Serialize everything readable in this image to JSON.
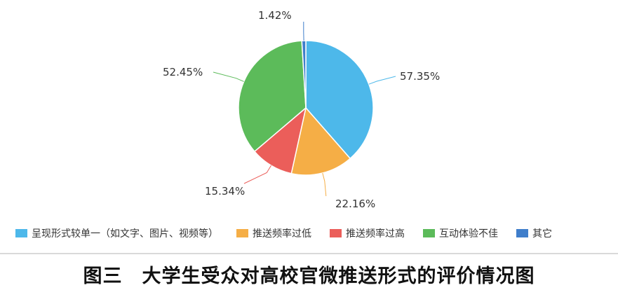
{
  "chart_data": {
    "type": "pie",
    "categories": [
      "呈现形式较单一（如文字、图片、视频等）",
      "推送频率过低",
      "推送频率过高",
      "互动体验不佳",
      "其它"
    ],
    "values": [
      57.35,
      22.16,
      15.34,
      52.45,
      1.42
    ],
    "value_labels": [
      "57.35%",
      "22.16%",
      "15.34%",
      "52.45%",
      "1.42%"
    ],
    "colors": [
      "#4db8ea",
      "#f5ae46",
      "#eb5e5a",
      "#5cbb5a",
      "#3f7ecb"
    ],
    "legend_position": "bottom-left",
    "start_angle_deg": 0,
    "direction": "clockwise"
  },
  "caption": "图三　大学生受众对高校官微推送形式的评价情况图"
}
